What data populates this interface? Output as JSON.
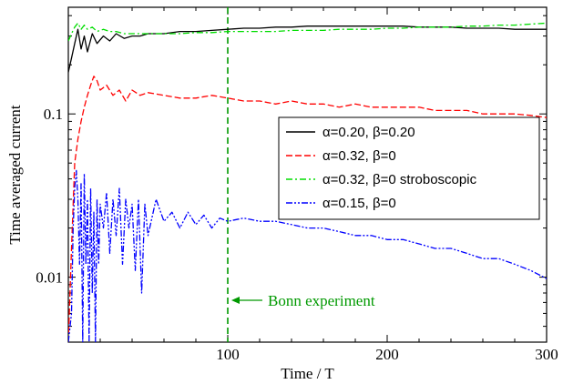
{
  "chart_data": {
    "type": "line",
    "title": "",
    "xlabel": "Time / T",
    "ylabel": "Time averaged current",
    "xlim": [
      0,
      300
    ],
    "ylim": [
      0.004,
      0.45
    ],
    "yscale": "log",
    "grid": false,
    "legend_position": "right-center",
    "xticks": [
      {
        "value": 100,
        "label": "100"
      },
      {
        "value": 200,
        "label": "200"
      },
      {
        "value": 300,
        "label": "300"
      }
    ],
    "yticks": [
      {
        "value": 0.01,
        "label": "0.01"
      },
      {
        "value": 0.1,
        "label": "0.1"
      }
    ],
    "series": [
      {
        "name": "α=0.20, β=0.20",
        "color": "#000000",
        "dash": "solid",
        "x": [
          0,
          2,
          4,
          6,
          8,
          10,
          12,
          15,
          18,
          22,
          26,
          30,
          35,
          40,
          45,
          50,
          60,
          70,
          80,
          90,
          100,
          110,
          120,
          130,
          140,
          150,
          160,
          170,
          180,
          190,
          200,
          210,
          220,
          230,
          240,
          250,
          260,
          270,
          280,
          290,
          300
        ],
        "y": [
          0.18,
          0.22,
          0.27,
          0.33,
          0.25,
          0.3,
          0.24,
          0.31,
          0.27,
          0.3,
          0.28,
          0.31,
          0.29,
          0.3,
          0.3,
          0.31,
          0.31,
          0.32,
          0.32,
          0.325,
          0.33,
          0.335,
          0.335,
          0.34,
          0.34,
          0.345,
          0.345,
          0.345,
          0.345,
          0.345,
          0.345,
          0.345,
          0.34,
          0.34,
          0.34,
          0.335,
          0.335,
          0.335,
          0.33,
          0.33,
          0.33
        ]
      },
      {
        "name": "α=0.32, β=0",
        "color": "#ff0000",
        "dash": "dashed",
        "x": [
          0,
          2,
          4,
          6,
          8,
          10,
          12,
          14,
          16,
          18,
          20,
          24,
          28,
          32,
          36,
          40,
          45,
          50,
          60,
          70,
          80,
          90,
          100,
          110,
          120,
          130,
          140,
          150,
          160,
          170,
          180,
          190,
          200,
          210,
          220,
          230,
          240,
          250,
          260,
          270,
          280,
          290,
          300
        ],
        "y": [
          0.004,
          0.015,
          0.05,
          0.07,
          0.09,
          0.11,
          0.13,
          0.15,
          0.17,
          0.16,
          0.14,
          0.15,
          0.13,
          0.14,
          0.12,
          0.14,
          0.13,
          0.135,
          0.13,
          0.125,
          0.125,
          0.13,
          0.125,
          0.12,
          0.12,
          0.115,
          0.12,
          0.115,
          0.115,
          0.11,
          0.115,
          0.11,
          0.11,
          0.11,
          0.11,
          0.105,
          0.105,
          0.105,
          0.1,
          0.1,
          0.1,
          0.098,
          0.095
        ]
      },
      {
        "name": "α=0.32, β=0 stroboscopic",
        "color": "#00dd00",
        "dash": "dashdot",
        "x": [
          0,
          2,
          4,
          6,
          8,
          10,
          12,
          15,
          18,
          22,
          26,
          30,
          35,
          40,
          45,
          50,
          60,
          70,
          80,
          90,
          100,
          110,
          120,
          130,
          140,
          150,
          160,
          170,
          180,
          190,
          200,
          210,
          220,
          230,
          240,
          250,
          260,
          270,
          280,
          290,
          300
        ],
        "y": [
          0.28,
          0.31,
          0.34,
          0.36,
          0.33,
          0.35,
          0.33,
          0.34,
          0.32,
          0.33,
          0.32,
          0.32,
          0.31,
          0.31,
          0.31,
          0.31,
          0.31,
          0.31,
          0.315,
          0.315,
          0.32,
          0.32,
          0.32,
          0.32,
          0.325,
          0.325,
          0.325,
          0.33,
          0.33,
          0.33,
          0.335,
          0.335,
          0.34,
          0.34,
          0.34,
          0.345,
          0.345,
          0.35,
          0.35,
          0.355,
          0.36
        ]
      },
      {
        "name": "α=0.15, β=0",
        "color": "#0000ff",
        "dash": "dashdotdot",
        "x": [
          0,
          2,
          3,
          4,
          5,
          6,
          7,
          8,
          9,
          10,
          11,
          12,
          13,
          14,
          15,
          16,
          17,
          18,
          19,
          20,
          22,
          24,
          26,
          28,
          30,
          32,
          34,
          36,
          38,
          40,
          42,
          44,
          46,
          48,
          50,
          55,
          60,
          65,
          70,
          75,
          80,
          85,
          90,
          95,
          100,
          110,
          120,
          130,
          140,
          150,
          160,
          170,
          180,
          190,
          200,
          210,
          220,
          230,
          240,
          250,
          260,
          270,
          280,
          290,
          300
        ],
        "y": [
          0.004,
          0.006,
          0.02,
          0.035,
          0.045,
          0.03,
          0.012,
          0.038,
          0.004,
          0.043,
          0.012,
          0.03,
          0.004,
          0.035,
          0.008,
          0.025,
          0.004,
          0.03,
          0.012,
          0.028,
          0.02,
          0.033,
          0.014,
          0.03,
          0.018,
          0.035,
          0.012,
          0.03,
          0.02,
          0.028,
          0.011,
          0.03,
          0.008,
          0.028,
          0.018,
          0.03,
          0.022,
          0.025,
          0.02,
          0.025,
          0.021,
          0.024,
          0.02,
          0.023,
          0.022,
          0.023,
          0.022,
          0.022,
          0.021,
          0.02,
          0.02,
          0.019,
          0.018,
          0.018,
          0.017,
          0.017,
          0.016,
          0.015,
          0.015,
          0.014,
          0.013,
          0.013,
          0.012,
          0.011,
          0.0098
        ]
      }
    ],
    "annotation": {
      "text": "Bonn experiment",
      "line_x": 100,
      "color": "#009900"
    }
  }
}
